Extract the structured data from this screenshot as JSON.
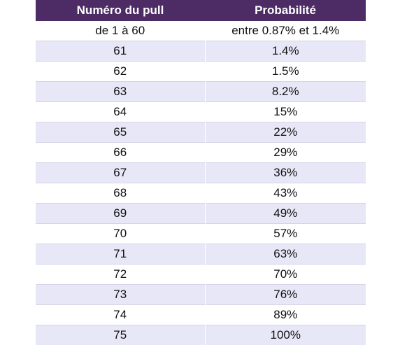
{
  "table": {
    "headers": [
      "Numéro du pull",
      "Probabilité"
    ],
    "rows": [
      [
        "de 1 à 60",
        "entre 0.87% et 1.4%"
      ],
      [
        "61",
        "1.4%"
      ],
      [
        "62",
        "1.5%"
      ],
      [
        "63",
        "8.2%"
      ],
      [
        "64",
        "15%"
      ],
      [
        "65",
        "22%"
      ],
      [
        "66",
        "29%"
      ],
      [
        "67",
        "36%"
      ],
      [
        "68",
        "43%"
      ],
      [
        "69",
        "49%"
      ],
      [
        "70",
        "57%"
      ],
      [
        "71",
        "63%"
      ],
      [
        "72",
        "70%"
      ],
      [
        "73",
        "76%"
      ],
      [
        "74",
        "89%"
      ],
      [
        "75",
        "100%"
      ]
    ]
  },
  "colors": {
    "header_bg": "#4d2c66",
    "header_text": "#ffffff",
    "row_alt_bg": "#e8e7f7",
    "row_bg": "#ffffff"
  }
}
